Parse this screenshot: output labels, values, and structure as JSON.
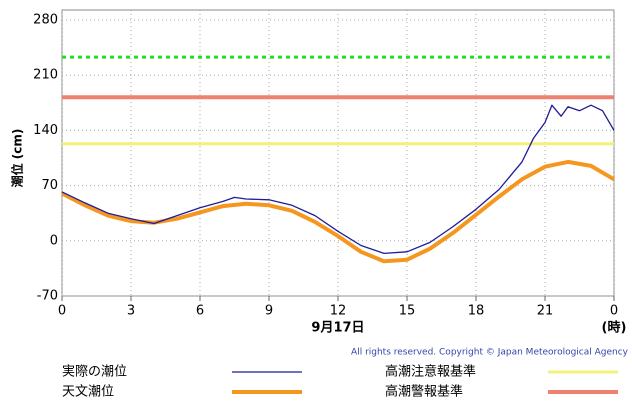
{
  "chart_data": {
    "type": "line",
    "ylabel": "潮位 (cm)",
    "xlabel": "9月17日",
    "xunit": "(時)",
    "copyright": "All rights reserved. Copyright © Japan Meteorological Agency",
    "xlim": [
      0,
      24
    ],
    "xticks": [
      0,
      3,
      6,
      9,
      12,
      15,
      18,
      21,
      {
        "value": 24,
        "label": "0"
      }
    ],
    "ylim": [
      -70,
      280
    ],
    "yticks": [
      -70,
      0,
      70,
      140,
      210,
      280
    ],
    "grid": true,
    "series": [
      {
        "name": "実際の潮位",
        "color": "#1c1c9c",
        "x": [
          0,
          1,
          2,
          3,
          4,
          5,
          6,
          7,
          7.5,
          8,
          9,
          10,
          11,
          12,
          13,
          14,
          15,
          16,
          17,
          18,
          19,
          20,
          20.5,
          21,
          21.3,
          21.7,
          22,
          22.5,
          23,
          23.5,
          24
        ],
        "values": [
          62,
          48,
          35,
          28,
          22,
          32,
          42,
          50,
          55,
          53,
          52,
          45,
          32,
          12,
          -6,
          -16,
          -14,
          -2,
          18,
          40,
          65,
          100,
          130,
          150,
          172,
          158,
          170,
          165,
          172,
          165,
          140
        ]
      },
      {
        "name": "天文潮位",
        "color": "#f5961e",
        "x": [
          0,
          1,
          2,
          3,
          4,
          5,
          6,
          7,
          8,
          9,
          10,
          11,
          12,
          13,
          14,
          15,
          16,
          17,
          18,
          19,
          20,
          21,
          22,
          23,
          24
        ],
        "values": [
          60,
          45,
          32,
          25,
          23,
          28,
          36,
          44,
          47,
          45,
          38,
          24,
          6,
          -14,
          -26,
          -24,
          -10,
          10,
          33,
          56,
          78,
          94,
          100,
          95,
          78
        ]
      },
      {
        "name": "高潮注意報基準",
        "color": "#f5f07a",
        "x": [
          0,
          24
        ],
        "values": [
          123,
          123
        ]
      },
      {
        "name": "高潮警報基準",
        "color": "#f08070",
        "x": [
          0,
          24
        ],
        "values": [
          182,
          182
        ]
      },
      {
        "color": "#22dd22",
        "dashed": true,
        "x": [
          0,
          24
        ],
        "values": [
          233,
          233
        ]
      }
    ]
  }
}
